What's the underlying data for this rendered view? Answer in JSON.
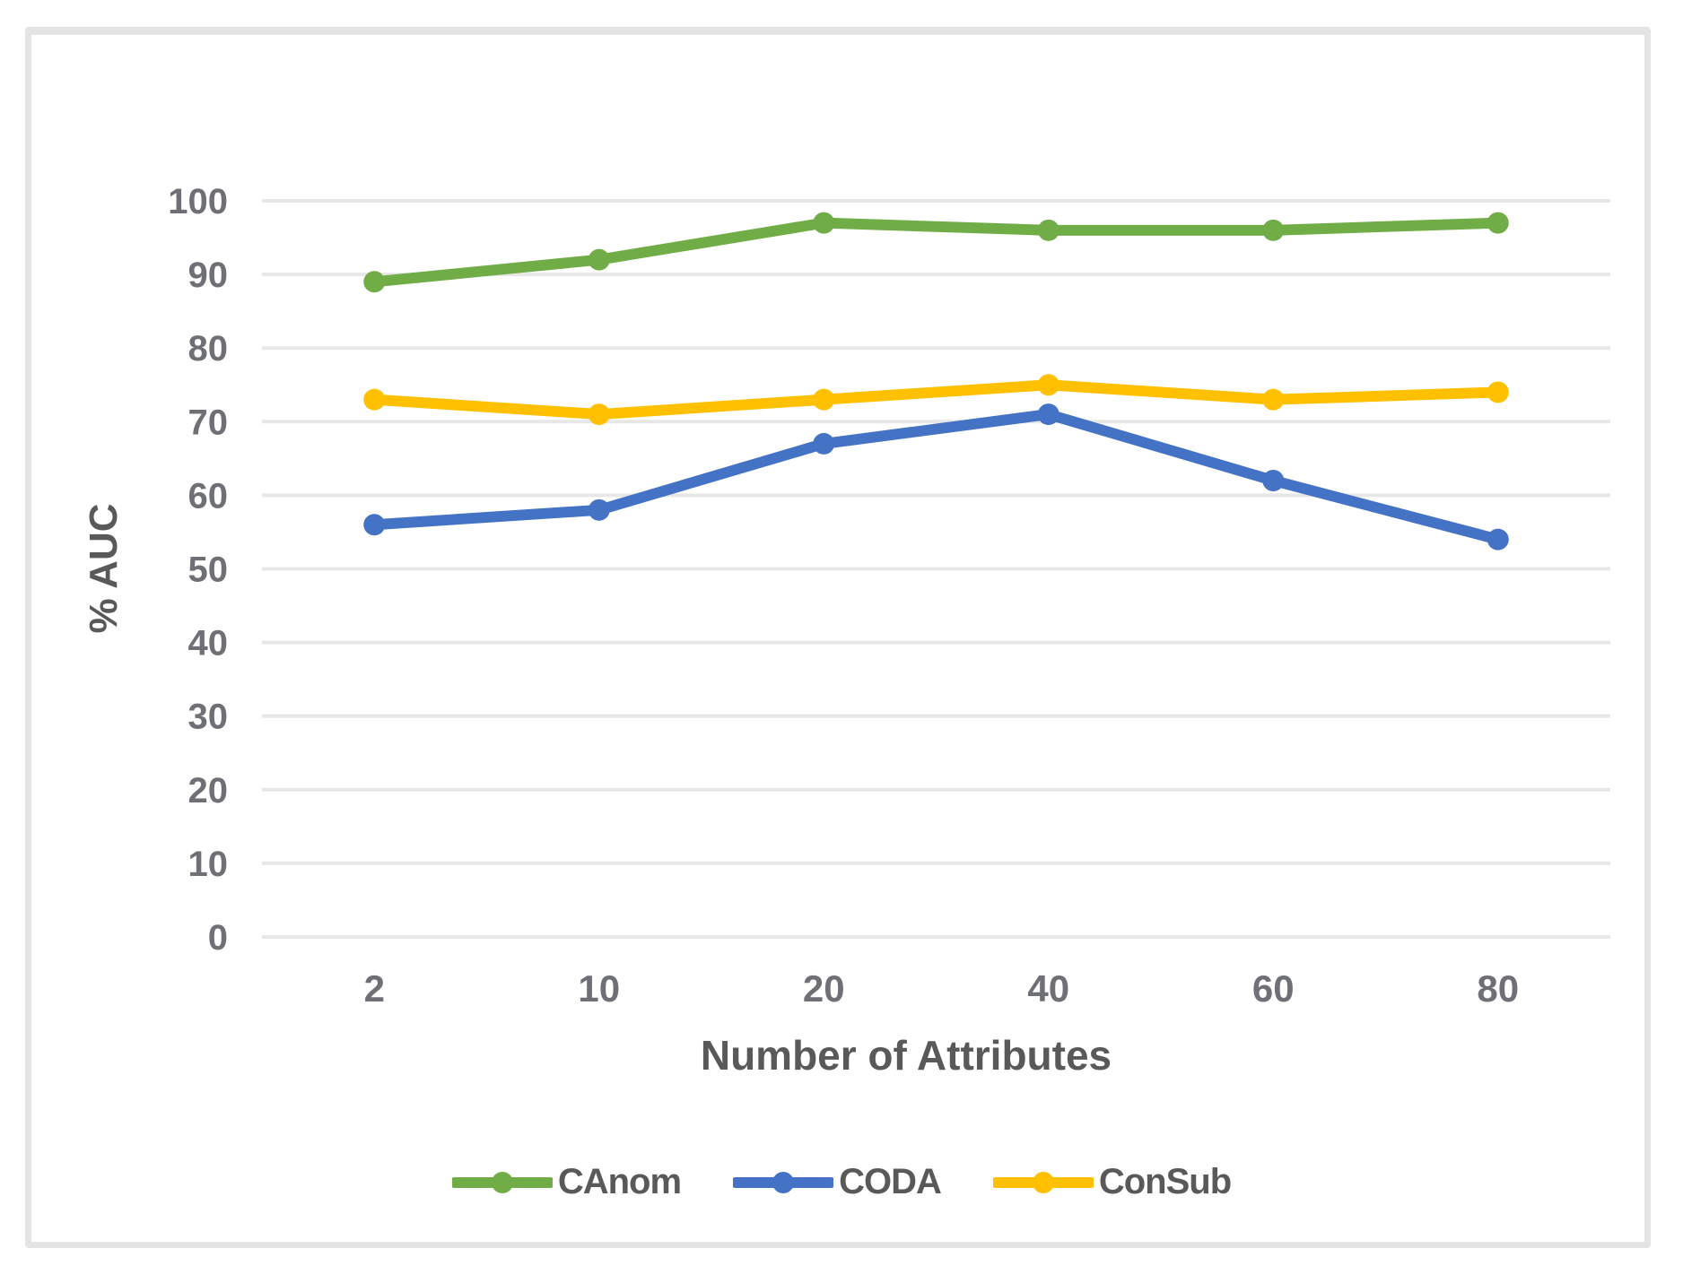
{
  "chart_data": {
    "type": "line",
    "title": "",
    "xlabel": "Number of Attributes",
    "ylabel": "% AUC",
    "categories": [
      "2",
      "10",
      "20",
      "40",
      "60",
      "80"
    ],
    "y_ticks": [
      0,
      10,
      20,
      30,
      40,
      50,
      60,
      70,
      80,
      90,
      100
    ],
    "ylim": [
      0,
      100
    ],
    "grid": "horizontal-only",
    "legend_position": "bottom-center",
    "series": [
      {
        "name": "CAnom",
        "color": "#70ad47",
        "values": [
          89,
          92,
          97,
          96,
          96,
          97
        ]
      },
      {
        "name": "CODA",
        "color": "#4472c4",
        "values": [
          56,
          58,
          67,
          71,
          62,
          54
        ]
      },
      {
        "name": "ConSub",
        "color": "#ffc000",
        "values": [
          73,
          71,
          73,
          75,
          73,
          74
        ]
      }
    ]
  },
  "style_colors": {
    "background": "#ffffff",
    "frame_border": "#e4e4e4",
    "gridline": "#e7e7e7",
    "tick_label": "#6e7076",
    "axis_title": "#595959",
    "legend_text": "#595959"
  }
}
